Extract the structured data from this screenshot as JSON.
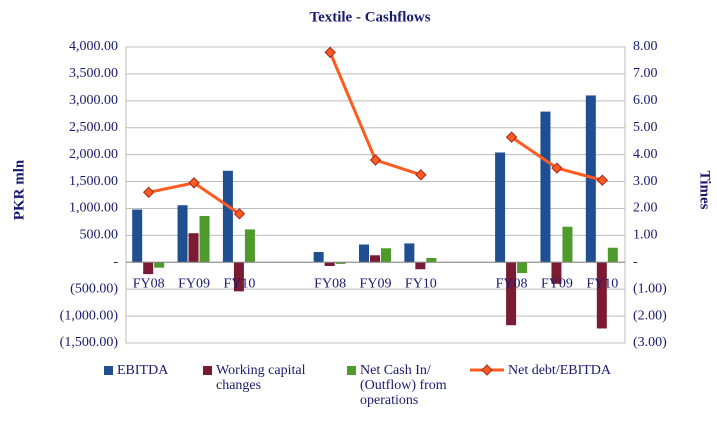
{
  "chart_data": {
    "type": "bar",
    "title": "Textile - Cashflows",
    "ylabel": "PKR mln",
    "y2label": "Times",
    "categories": [
      "FY08",
      "FY09",
      "FY10",
      null,
      "FY08",
      "FY09",
      "FY10",
      null,
      "FY08",
      "FY09",
      "FY10"
    ],
    "series": [
      {
        "name": "EBITDA",
        "color": "#1f4e91",
        "type": "bar",
        "values": [
          980,
          1060,
          1700,
          null,
          190,
          330,
          350,
          null,
          2040,
          2800,
          3100
        ]
      },
      {
        "name": "Working capital changes",
        "color": "#7b1a33",
        "type": "bar",
        "values": [
          -220,
          540,
          -540,
          null,
          -70,
          130,
          -130,
          null,
          -1170,
          -400,
          -1230
        ]
      },
      {
        "name": "Net Cash In/ (Outflow) from operations",
        "color": "#4e9a2a",
        "type": "bar",
        "values": [
          -100,
          860,
          610,
          null,
          -30,
          260,
          80,
          null,
          -200,
          660,
          270
        ]
      },
      {
        "name": "Net debt/EBITDA",
        "color": "#ff5a1f",
        "type": "line",
        "axis": "y2",
        "values": [
          2.6,
          2.95,
          1.8,
          null,
          7.8,
          3.8,
          3.25,
          null,
          4.65,
          3.5,
          3.05
        ]
      }
    ],
    "ylim": [
      -1500,
      4000
    ],
    "yticks": [
      {
        "value": -1500,
        "label": "(1,500.00)"
      },
      {
        "value": -1000,
        "label": "(1,000.00)"
      },
      {
        "value": -500,
        "label": "(500.00)"
      },
      {
        "value": 0,
        "label": "-"
      },
      {
        "value": 500,
        "label": "500.00"
      },
      {
        "value": 1000,
        "label": "1,000.00"
      },
      {
        "value": 1500,
        "label": "1,500.00"
      },
      {
        "value": 2000,
        "label": "2,000.00"
      },
      {
        "value": 2500,
        "label": "2,500.00"
      },
      {
        "value": 3000,
        "label": "3,000.00"
      },
      {
        "value": 3500,
        "label": "3,500.00"
      },
      {
        "value": 4000,
        "label": "4,000.00"
      }
    ],
    "y2lim": [
      -3,
      8
    ],
    "y2ticks": [
      {
        "value": -3,
        "label": "(3.00)"
      },
      {
        "value": -2,
        "label": "(2.00)"
      },
      {
        "value": -1,
        "label": "(1.00)"
      },
      {
        "value": 0,
        "label": "-"
      },
      {
        "value": 1,
        "label": "1.00"
      },
      {
        "value": 2,
        "label": "2.00"
      },
      {
        "value": 3,
        "label": "3.00"
      },
      {
        "value": 4,
        "label": "4.00"
      },
      {
        "value": 5,
        "label": "5.00"
      },
      {
        "value": 6,
        "label": "6.00"
      },
      {
        "value": 7,
        "label": "7.00"
      },
      {
        "value": 8,
        "label": "8.00"
      }
    ],
    "grid": true,
    "legend": "bottom"
  }
}
